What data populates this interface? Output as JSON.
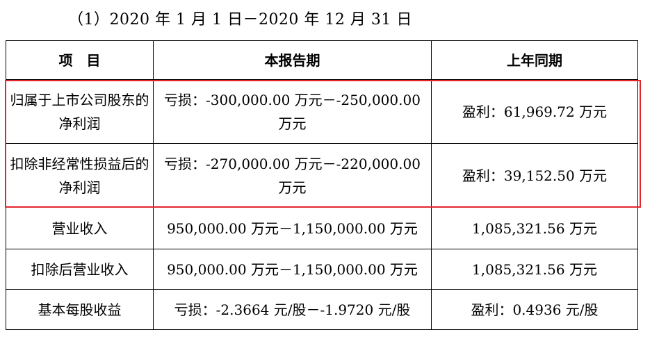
{
  "period_title": "（1）2020 年 1 月 1 日－2020 年 12 月 31 日",
  "table": {
    "headers": [
      "项　目",
      "本报告期",
      "上年同期"
    ],
    "rows": [
      {
        "item": "归属于上市公司股东的净利润",
        "current": "亏损：-300,000.00 万元－-250,000.00 万元",
        "prior": "盈利：61,969.72 万元"
      },
      {
        "item": "扣除非经常性损益后的净利润",
        "current": "亏损：-270,000.00 万元－-220,000.00 万元",
        "prior": "盈利：39,152.50 万元"
      },
      {
        "item": "营业收入",
        "current": "950,000.00 万元－1,150,000.00 万元",
        "prior": "1,085,321.56 万元"
      },
      {
        "item": "扣除后营业收入",
        "current": "950,000.00 万元－1,150,000.00 万元",
        "prior": "1,085,321.56 万元"
      },
      {
        "item": "基本每股收益",
        "current": "亏损：-2.3664 元/股－-1.9720 元/股",
        "prior": "盈利：0.4936 元/股"
      }
    ]
  },
  "colors": {
    "highlight": "#e3262d",
    "border": "#000000"
  }
}
